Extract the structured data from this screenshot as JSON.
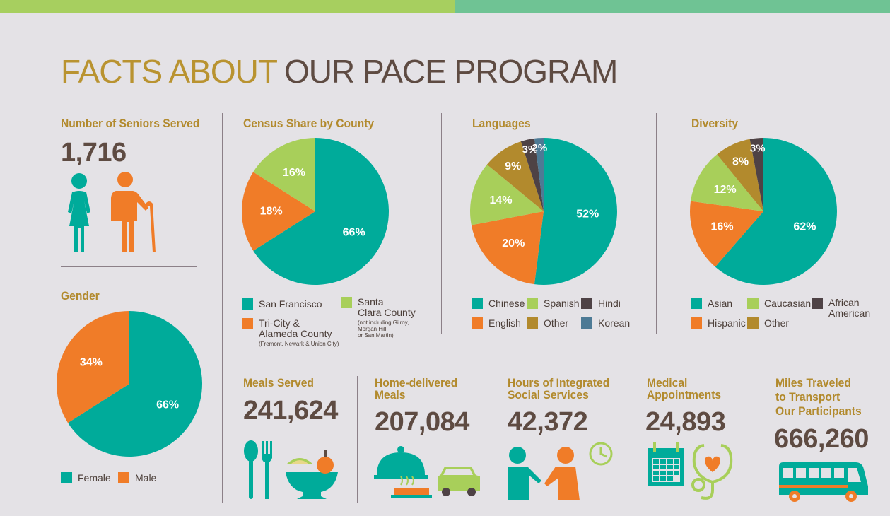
{
  "title": {
    "part1": "FACTS ABOUT",
    "part2": "OUR PACE PROGRAM"
  },
  "colors": {
    "teal": "#00ab9a",
    "orange": "#f07c28",
    "lime": "#a8cf5a",
    "gold": "#b28a2d",
    "brown": "#5e4b42",
    "dark": "#4e4245",
    "slate": "#4d7a95",
    "bg": "#e4e2e6"
  },
  "seniors": {
    "label": "Number of Seniors Served",
    "value": "1,716"
  },
  "gender_title": "Gender",
  "census_title": "Census Share by County",
  "languages_title": "Languages",
  "diversity_title": "Diversity",
  "census_legend": {
    "sf": "San Francisco",
    "tri_l1": "Tri-City &",
    "tri_l2": "Alameda County",
    "tri_note": "(Fremont, Newark & Union City)",
    "sc_l1": "Santa",
    "sc_l2": "Clara County",
    "sc_note1": "(not including Gilroy,",
    "sc_note2": "Morgan Hill",
    "sc_note3": "or San Martin)"
  },
  "diversity_legend": {
    "african_l1": "African",
    "african_l2": "American"
  },
  "chart_data": [
    {
      "type": "pie",
      "title": "Gender",
      "categories": [
        "Female",
        "Male"
      ],
      "values": [
        66,
        34
      ],
      "labels": [
        "66%",
        "34%"
      ],
      "colors": [
        "#00ab9a",
        "#f07c28"
      ],
      "legend": "bottom"
    },
    {
      "type": "pie",
      "title": "Census Share by County",
      "categories": [
        "San Francisco",
        "Tri-City & Alameda County",
        "Santa Clara County"
      ],
      "values": [
        66,
        18,
        16
      ],
      "labels": [
        "66%",
        "18%",
        "16%"
      ],
      "colors": [
        "#00ab9a",
        "#f07c28",
        "#a8cf5a"
      ],
      "legend": "bottom"
    },
    {
      "type": "pie",
      "title": "Languages",
      "categories": [
        "Chinese",
        "English",
        "Spanish",
        "Other",
        "Hindi",
        "Korean"
      ],
      "values": [
        52,
        20,
        14,
        9,
        3,
        2
      ],
      "labels": [
        "52%",
        "20%",
        "14%",
        "9%",
        "3%",
        "2%"
      ],
      "colors": [
        "#00ab9a",
        "#f07c28",
        "#a8cf5a",
        "#b28a2d",
        "#4e4245",
        "#4d7a95"
      ],
      "legend": "bottom"
    },
    {
      "type": "pie",
      "title": "Diversity",
      "categories": [
        "Asian",
        "Hispanic",
        "Caucasian",
        "Other",
        "African American"
      ],
      "values": [
        62,
        16,
        12,
        8,
        3
      ],
      "labels": [
        "62%",
        "16%",
        "12%",
        "8%",
        "3%"
      ],
      "colors": [
        "#00ab9a",
        "#f07c28",
        "#a8cf5a",
        "#b28a2d",
        "#4e4245"
      ],
      "legend": "bottom"
    }
  ],
  "stats": [
    {
      "label_l1": "Meals Served",
      "label_l2": "",
      "label_l3": "",
      "value": "241,624",
      "icon": "utensils-bowl-icon"
    },
    {
      "label_l1": "Home-delivered",
      "label_l2": "Meals",
      "label_l3": "",
      "value": "207,084",
      "icon": "cloche-car-icon"
    },
    {
      "label_l1": "Hours of Integrated",
      "label_l2": "Social Services",
      "label_l3": "",
      "value": "42,372",
      "icon": "people-clock-icon"
    },
    {
      "label_l1": "Medical",
      "label_l2": "Appointments",
      "label_l3": "",
      "value": "24,893",
      "icon": "calendar-stethoscope-icon"
    },
    {
      "label_l1": "Miles Traveled",
      "label_l2": "to Transport",
      "label_l3": "Our Participants",
      "value": "666,260",
      "icon": "bus-icon"
    }
  ]
}
